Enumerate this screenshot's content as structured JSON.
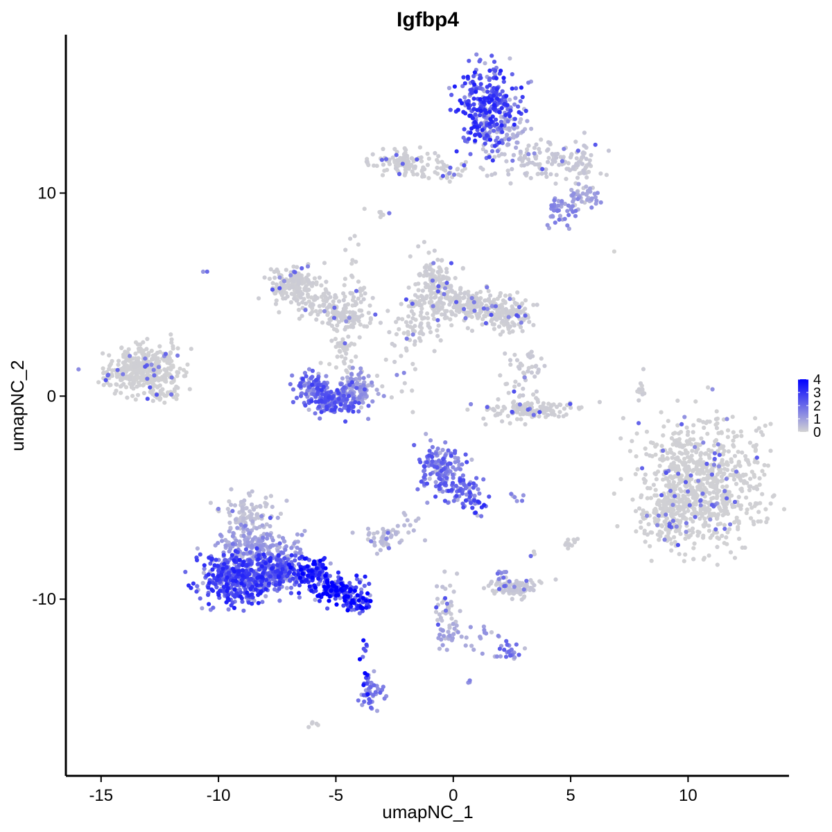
{
  "chart_data": {
    "type": "scatter",
    "title": "Igfbp4",
    "xlabel": "umapNC_1",
    "ylabel": "umapNC_2",
    "xlim": [
      -16.5,
      14.3
    ],
    "ylim": [
      -18.7,
      17.8
    ],
    "x_ticks": [
      -15,
      -10,
      -5,
      0,
      5,
      10
    ],
    "x_tick_labels": [
      "-15",
      "-10",
      "-5",
      "0",
      "5",
      "10"
    ],
    "y_ticks": [
      -10,
      0,
      10
    ],
    "y_tick_labels": [
      "-10",
      "0",
      "10"
    ],
    "grid": false,
    "legend_position": "right",
    "colorbar": {
      "min": 0,
      "max": 4,
      "ticks": [
        4,
        3,
        2,
        1,
        0
      ],
      "tick_labels": [
        "4",
        "3",
        "2",
        "1",
        "0"
      ],
      "low_color": "#d3d3d3",
      "high_color": "#0000ff"
    },
    "clusters": [
      {
        "cx": 1.4,
        "cy": 14.2,
        "sx": 0.65,
        "sy": 1.0,
        "n": 320,
        "expr": 2.4
      },
      {
        "cx": 2.2,
        "cy": 13.2,
        "sx": 0.5,
        "sy": 0.6,
        "n": 60,
        "expr": 0.6
      },
      {
        "cx": -2.2,
        "cy": 11.5,
        "sx": 0.6,
        "sy": 0.3,
        "n": 100,
        "expr": 0.1
      },
      {
        "cx": -0.3,
        "cy": 11.2,
        "sx": 0.8,
        "sy": 0.3,
        "n": 40,
        "expr": 0.1
      },
      {
        "cx": 3.8,
        "cy": 11.6,
        "sx": 1.1,
        "sy": 0.5,
        "n": 110,
        "expr": 0.2
      },
      {
        "cx": 5.4,
        "cy": 11.3,
        "sx": 0.4,
        "sy": 0.5,
        "n": 40,
        "expr": 0.2
      },
      {
        "cx": 5.5,
        "cy": 9.8,
        "sx": 0.4,
        "sy": 0.3,
        "n": 45,
        "expr": 1.0
      },
      {
        "cx": 4.5,
        "cy": 9.0,
        "sx": 0.35,
        "sy": 0.35,
        "n": 35,
        "expr": 1.3
      },
      {
        "cx": -4.2,
        "cy": 5.8,
        "sx": 0.25,
        "sy": 1.3,
        "n": 30,
        "expr": 0.1
      },
      {
        "cx": -6.8,
        "cy": 5.5,
        "sx": 0.55,
        "sy": 0.4,
        "n": 150,
        "expr": 0.1
      },
      {
        "cx": -5.7,
        "cy": 4.6,
        "sx": 0.7,
        "sy": 0.4,
        "n": 80,
        "expr": 0.1
      },
      {
        "cx": -4.5,
        "cy": 3.9,
        "sx": 0.6,
        "sy": 0.3,
        "n": 90,
        "expr": 0.1
      },
      {
        "cx": -4.6,
        "cy": 2.3,
        "sx": 0.3,
        "sy": 0.6,
        "n": 25,
        "expr": 0.1
      },
      {
        "cx": -0.7,
        "cy": 5.5,
        "sx": 0.45,
        "sy": 0.6,
        "n": 140,
        "expr": 0.1
      },
      {
        "cx": 0.6,
        "cy": 4.5,
        "sx": 1.0,
        "sy": 0.4,
        "n": 200,
        "expr": 0.1
      },
      {
        "cx": 2.3,
        "cy": 4.0,
        "sx": 0.55,
        "sy": 0.4,
        "n": 120,
        "expr": 0.1
      },
      {
        "cx": -1.6,
        "cy": 3.6,
        "sx": 0.5,
        "sy": 0.7,
        "n": 70,
        "expr": 0.1
      },
      {
        "cx": -13.4,
        "cy": 1.3,
        "sx": 0.75,
        "sy": 0.55,
        "n": 330,
        "expr": 0.05
      },
      {
        "cx": -12.2,
        "cy": 1.6,
        "sx": 0.4,
        "sy": 0.7,
        "n": 40,
        "expr": 0.05
      },
      {
        "cx": -12.3,
        "cy": 0.1,
        "sx": 0.35,
        "sy": 0.2,
        "n": 30,
        "expr": 0.05
      },
      {
        "cx": -6.0,
        "cy": 0.5,
        "sx": 0.4,
        "sy": 0.5,
        "n": 80,
        "expr": 2.0
      },
      {
        "cx": -5.1,
        "cy": -0.2,
        "sx": 0.55,
        "sy": 0.35,
        "n": 170,
        "expr": 1.9
      },
      {
        "cx": -4.1,
        "cy": 0.3,
        "sx": 0.4,
        "sy": 0.45,
        "n": 90,
        "expr": 1.0
      },
      {
        "cx": -4.6,
        "cy": 2.0,
        "sx": 0.35,
        "sy": 0.5,
        "n": 20,
        "expr": 0.05
      },
      {
        "cx": 3.3,
        "cy": -0.7,
        "sx": 1.0,
        "sy": 0.25,
        "n": 130,
        "expr": 0.1
      },
      {
        "cx": 3.0,
        "cy": 0.8,
        "sx": 0.4,
        "sy": 0.8,
        "n": 50,
        "expr": 0.15
      },
      {
        "cx": -2.2,
        "cy": 1.0,
        "sx": 0.5,
        "sy": 0.7,
        "n": 15,
        "expr": 0.1
      },
      {
        "cx": 8.0,
        "cy": 0.2,
        "sx": 0.1,
        "sy": 0.5,
        "n": 12,
        "expr": 0.1
      },
      {
        "cx": 10.5,
        "cy": -4.3,
        "sx": 1.3,
        "sy": 1.5,
        "n": 800,
        "expr": 0.05
      },
      {
        "cx": 9.1,
        "cy": -5.9,
        "sx": 0.5,
        "sy": 0.7,
        "n": 120,
        "expr": 0.05
      },
      {
        "cx": -0.6,
        "cy": -3.5,
        "sx": 0.45,
        "sy": 0.6,
        "n": 140,
        "expr": 1.8
      },
      {
        "cx": 0.6,
        "cy": -4.6,
        "sx": 0.4,
        "sy": 0.4,
        "n": 60,
        "expr": 1.9
      },
      {
        "cx": 1.0,
        "cy": -5.4,
        "sx": 0.2,
        "sy": 0.3,
        "n": 12,
        "expr": 2.6
      },
      {
        "cx": 2.8,
        "cy": -5.0,
        "sx": 0.15,
        "sy": 0.1,
        "n": 6,
        "expr": 1.2
      },
      {
        "cx": -8.7,
        "cy": -5.9,
        "sx": 0.55,
        "sy": 0.55,
        "n": 90,
        "expr": 0.3
      },
      {
        "cx": -8.3,
        "cy": -7.3,
        "sx": 0.9,
        "sy": 0.55,
        "n": 180,
        "expr": 0.9
      },
      {
        "cx": -9.0,
        "cy": -9.0,
        "sx": 0.9,
        "sy": 0.6,
        "n": 450,
        "expr": 2.4
      },
      {
        "cx": -7.6,
        "cy": -8.6,
        "sx": 0.6,
        "sy": 0.5,
        "n": 180,
        "expr": 2.2
      },
      {
        "cx": -6.2,
        "cy": -8.6,
        "sx": 0.5,
        "sy": 0.3,
        "n": 120,
        "expr": 2.8
      },
      {
        "cx": -5.0,
        "cy": -9.5,
        "sx": 0.5,
        "sy": 0.3,
        "n": 130,
        "expr": 3.4
      },
      {
        "cx": -4.0,
        "cy": -10.2,
        "sx": 0.4,
        "sy": 0.25,
        "n": 60,
        "expr": 3.1
      },
      {
        "cx": -2.9,
        "cy": -7.0,
        "sx": 0.4,
        "sy": 0.3,
        "n": 45,
        "expr": 0.4
      },
      {
        "cx": -1.8,
        "cy": -6.2,
        "sx": 0.3,
        "sy": 0.4,
        "n": 10,
        "expr": 0.4
      },
      {
        "cx": 2.5,
        "cy": -9.4,
        "sx": 0.55,
        "sy": 0.25,
        "n": 100,
        "expr": 0.2
      },
      {
        "cx": 2.0,
        "cy": -8.9,
        "sx": 0.15,
        "sy": 0.15,
        "n": 8,
        "expr": 1.6
      },
      {
        "cx": 5.0,
        "cy": -7.2,
        "sx": 0.2,
        "sy": 0.2,
        "n": 12,
        "expr": 0.1
      },
      {
        "cx": 3.4,
        "cy": -7.7,
        "sx": 0.1,
        "sy": 0.1,
        "n": 3,
        "expr": 0.1
      },
      {
        "cx": -0.3,
        "cy": -10.5,
        "sx": 0.25,
        "sy": 0.8,
        "n": 40,
        "expr": 0.3
      },
      {
        "cx": -0.2,
        "cy": -11.8,
        "sx": 0.3,
        "sy": 0.3,
        "n": 25,
        "expr": 0.8
      },
      {
        "cx": 1.4,
        "cy": -11.9,
        "sx": 0.4,
        "sy": 0.3,
        "n": 15,
        "expr": 1.0
      },
      {
        "cx": 2.3,
        "cy": -12.6,
        "sx": 0.25,
        "sy": 0.2,
        "n": 25,
        "expr": 1.6
      },
      {
        "cx": -3.8,
        "cy": -12.4,
        "sx": 0.1,
        "sy": 0.5,
        "n": 8,
        "expr": 3.0
      },
      {
        "cx": -3.6,
        "cy": -14.0,
        "sx": 0.15,
        "sy": 0.3,
        "n": 15,
        "expr": 2.6
      },
      {
        "cx": -3.4,
        "cy": -14.8,
        "sx": 0.25,
        "sy": 0.35,
        "n": 35,
        "expr": 1.6
      },
      {
        "cx": 0.6,
        "cy": -14.1,
        "sx": 0.08,
        "sy": 0.08,
        "n": 3,
        "expr": 1.5
      },
      {
        "cx": -6.0,
        "cy": -16.1,
        "sx": 0.15,
        "sy": 0.1,
        "n": 5,
        "expr": 0.1
      },
      {
        "cx": -10.6,
        "cy": 6.1,
        "sx": 0.05,
        "sy": 0.05,
        "n": 2,
        "expr": 1.5
      },
      {
        "cx": -3.0,
        "cy": 8.9,
        "sx": 0.15,
        "sy": 0.25,
        "n": 6,
        "expr": 0.1
      },
      {
        "cx": 6.8,
        "cy": 7.1,
        "sx": 0.05,
        "sy": 0.05,
        "n": 1,
        "expr": 0.0
      }
    ]
  }
}
